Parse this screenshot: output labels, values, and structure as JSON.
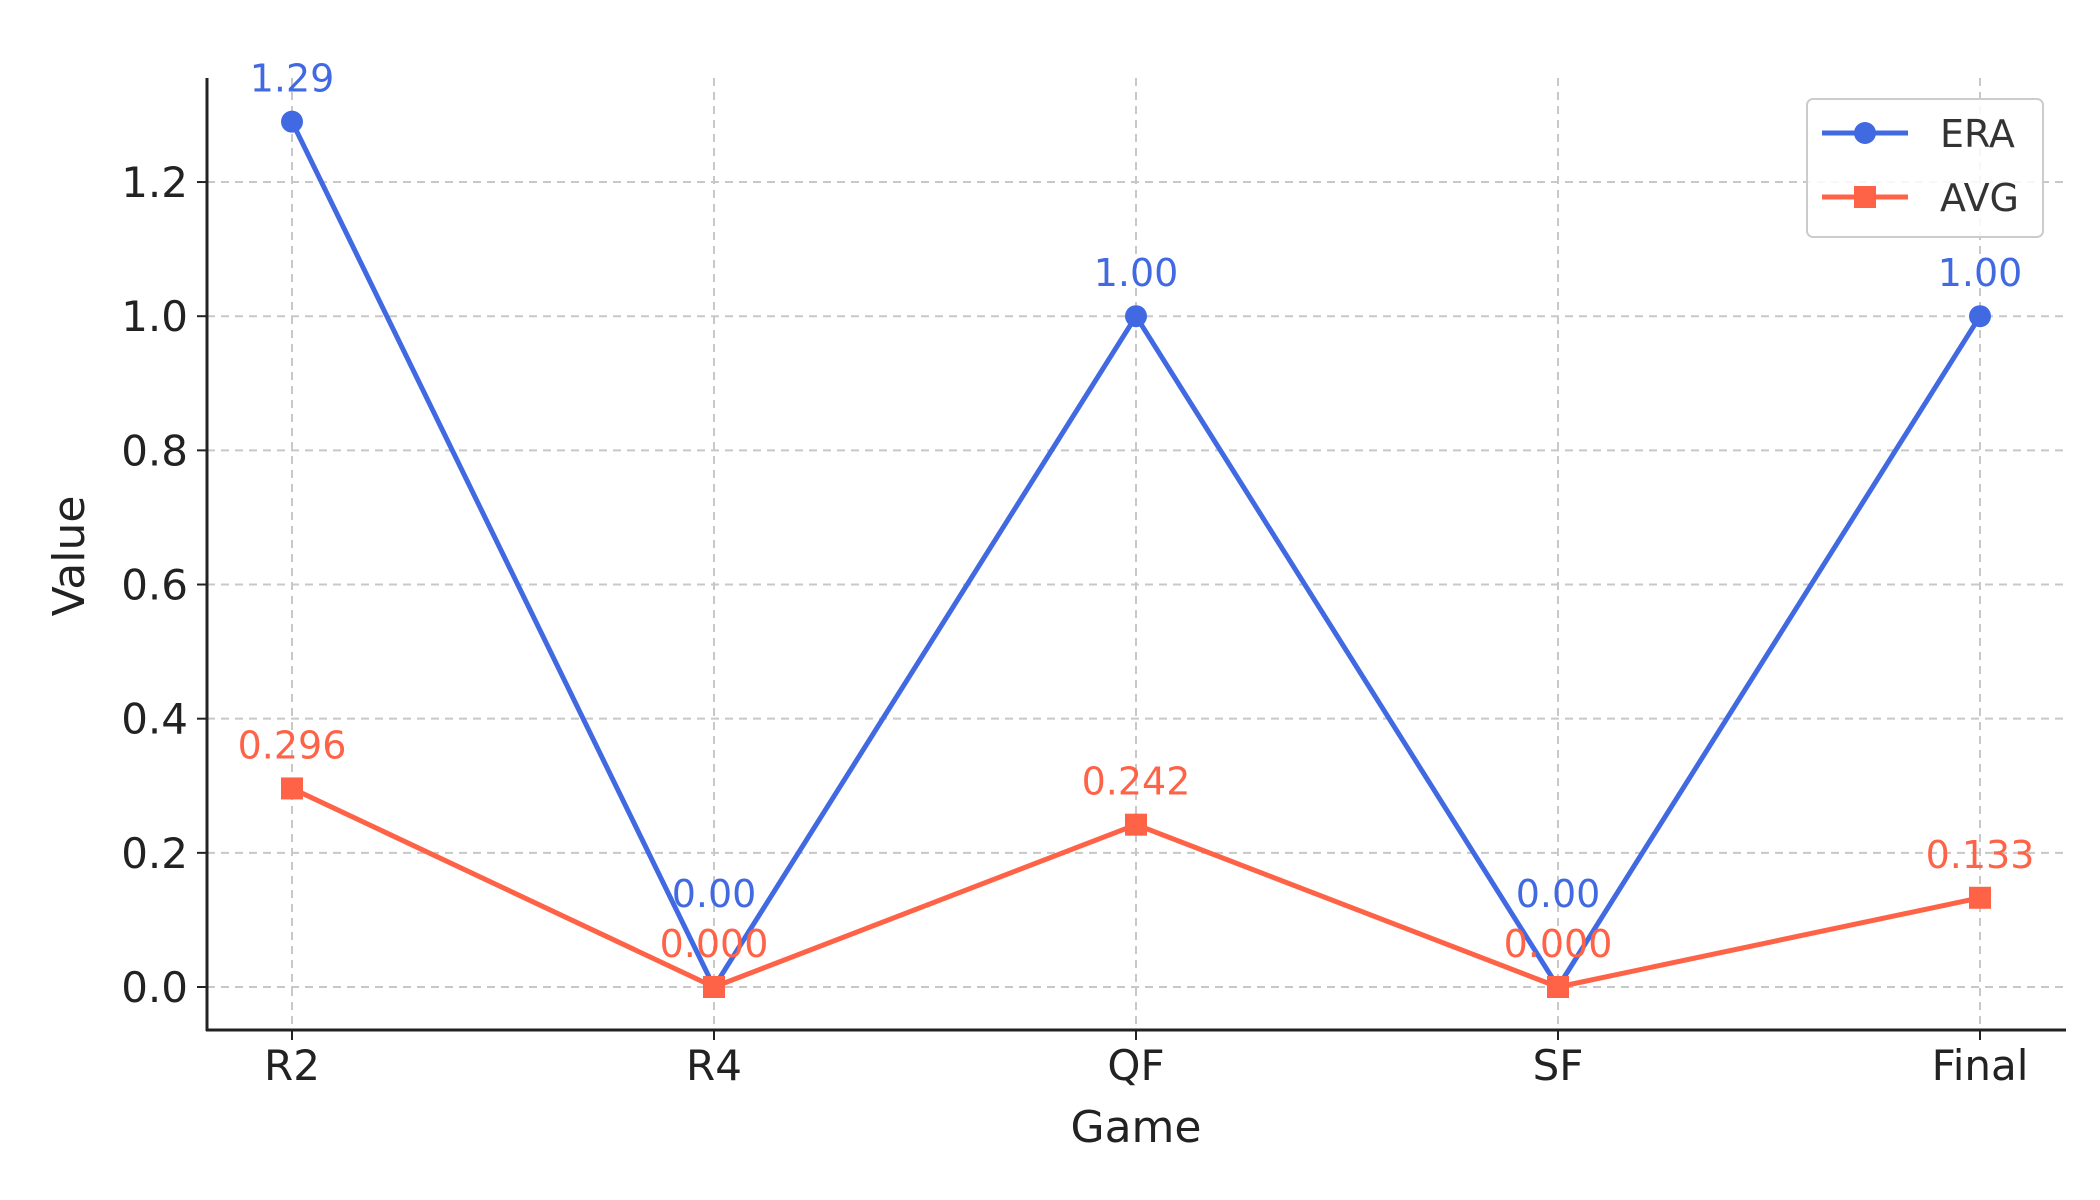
{
  "chart_data": {
    "type": "line",
    "title": "",
    "xlabel": "Game",
    "ylabel": "Value",
    "categories": [
      "R2",
      "R4",
      "QF",
      "SF",
      "Final"
    ],
    "ylim": [
      -0.065,
      1.36
    ],
    "yticks": [
      "0.0",
      "0.2",
      "0.4",
      "0.6",
      "0.8",
      "1.0",
      "1.2"
    ],
    "grid": true,
    "legend_position": "top-right",
    "series": [
      {
        "name": "ERA",
        "color": "#4169E1",
        "marker": "circle",
        "values": [
          1.29,
          0.0,
          1.0,
          0.0,
          1.0
        ],
        "labels": [
          "1.29",
          "0.00",
          "1.00",
          "0.00",
          "1.00"
        ]
      },
      {
        "name": "AVG",
        "color": "#FF6347",
        "marker": "square",
        "values": [
          0.296,
          0.0,
          0.242,
          0.0,
          0.133
        ],
        "labels": [
          "0.296",
          "0.000",
          "0.242",
          "0.000",
          "0.133"
        ]
      }
    ]
  }
}
